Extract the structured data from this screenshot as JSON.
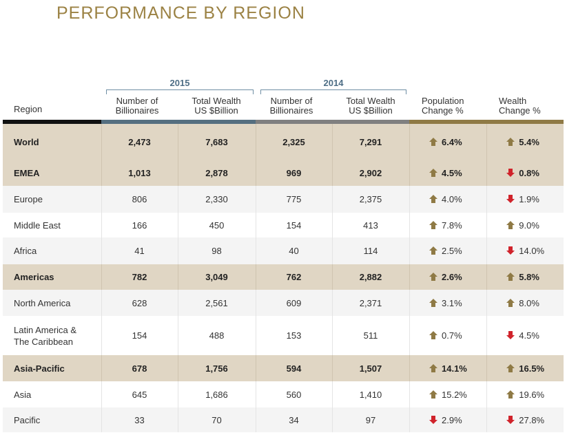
{
  "title": "PERFORMANCE BY REGION",
  "years": {
    "y2015": "2015",
    "y2014": "2014"
  },
  "headers": {
    "region": "Region",
    "num_billionaires": [
      "Number of",
      "Billionaires"
    ],
    "total_wealth": [
      "Total Wealth",
      "US $Billion"
    ],
    "population_change": [
      "Population",
      "Change %"
    ],
    "wealth_change": [
      "Wealth",
      "Change %"
    ]
  },
  "colors": {
    "title": "#9b8244",
    "bar_region": "#111111",
    "bar_2015": "#556f80",
    "bar_2014": "#808080",
    "bar_change": "#8f7a45",
    "summary_row": "#e0d6c4",
    "arrow_up": "#8f7a45",
    "arrow_down": "#d0232b"
  },
  "rows": [
    {
      "region": "World",
      "type": "summary",
      "b2015": "2,473",
      "w2015": "7,683",
      "b2014": "2,325",
      "w2014": "7,291",
      "pop": "6.4%",
      "pop_dir": "up",
      "wealth": "5.4%",
      "wealth_dir": "up"
    },
    {
      "region": "EMEA",
      "type": "summary",
      "b2015": "1,013",
      "w2015": "2,878",
      "b2014": "969",
      "w2014": "2,902",
      "pop": "4.5%",
      "pop_dir": "up",
      "wealth": "0.8%",
      "wealth_dir": "down"
    },
    {
      "region": "Europe",
      "type": "shade",
      "b2015": "806",
      "w2015": "2,330",
      "b2014": "775",
      "w2014": "2,375",
      "pop": "4.0%",
      "pop_dir": "up",
      "wealth": "1.9%",
      "wealth_dir": "down"
    },
    {
      "region": "Middle East",
      "type": "plain",
      "b2015": "166",
      "w2015": "450",
      "b2014": "154",
      "w2014": "413",
      "pop": "7.8%",
      "pop_dir": "up",
      "wealth": "9.0%",
      "wealth_dir": "up"
    },
    {
      "region": "Africa",
      "type": "shade",
      "b2015": "41",
      "w2015": "98",
      "b2014": "40",
      "w2014": "114",
      "pop": "2.5%",
      "pop_dir": "up",
      "wealth": "14.0%",
      "wealth_dir": "down"
    },
    {
      "region": "Americas",
      "type": "summary",
      "b2015": "782",
      "w2015": "3,049",
      "b2014": "762",
      "w2014": "2,882",
      "pop": "2.6%",
      "pop_dir": "up",
      "wealth": "5.8%",
      "wealth_dir": "up"
    },
    {
      "region": "North America",
      "type": "shade",
      "b2015": "628",
      "w2015": "2,561",
      "b2014": "609",
      "w2014": "2,371",
      "pop": "3.1%",
      "pop_dir": "up",
      "wealth": "8.0%",
      "wealth_dir": "up"
    },
    {
      "region": "Latin America & The Caribbean",
      "type": "plain",
      "b2015": "154",
      "w2015": "488",
      "b2014": "153",
      "w2014": "511",
      "pop": "0.7%",
      "pop_dir": "up",
      "wealth": "4.5%",
      "wealth_dir": "down"
    },
    {
      "region": "Asia-Pacific",
      "type": "summary",
      "b2015": "678",
      "w2015": "1,756",
      "b2014": "594",
      "w2014": "1,507",
      "pop": "14.1%",
      "pop_dir": "up",
      "wealth": "16.5%",
      "wealth_dir": "up"
    },
    {
      "region": "Asia",
      "type": "plain",
      "b2015": "645",
      "w2015": "1,686",
      "b2014": "560",
      "w2014": "1,410",
      "pop": "15.2%",
      "pop_dir": "up",
      "wealth": "19.6%",
      "wealth_dir": "up"
    },
    {
      "region": "Pacific",
      "type": "shade",
      "b2015": "33",
      "w2015": "70",
      "b2014": "34",
      "w2014": "97",
      "pop": "2.9%",
      "pop_dir": "down",
      "wealth": "27.8%",
      "wealth_dir": "down"
    }
  ]
}
